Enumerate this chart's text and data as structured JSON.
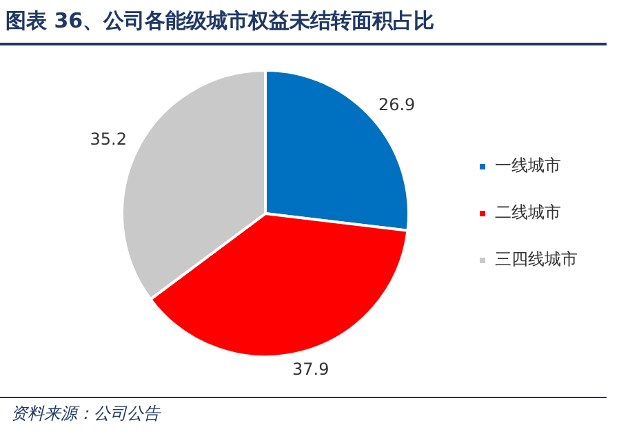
{
  "chart_data": {
    "type": "pie",
    "title": "图表 36、公司各能级城市权益未结转面积占比",
    "categories": [
      "一线城市",
      "二线城市",
      "三四线城市"
    ],
    "values": [
      26.9,
      37.9,
      35.2
    ],
    "colors": [
      "#0070c0",
      "#ff0000",
      "#c9c9c9"
    ],
    "data_labels": true,
    "legend": "right",
    "annotations": [
      "资料来源：公司公告"
    ]
  }
}
